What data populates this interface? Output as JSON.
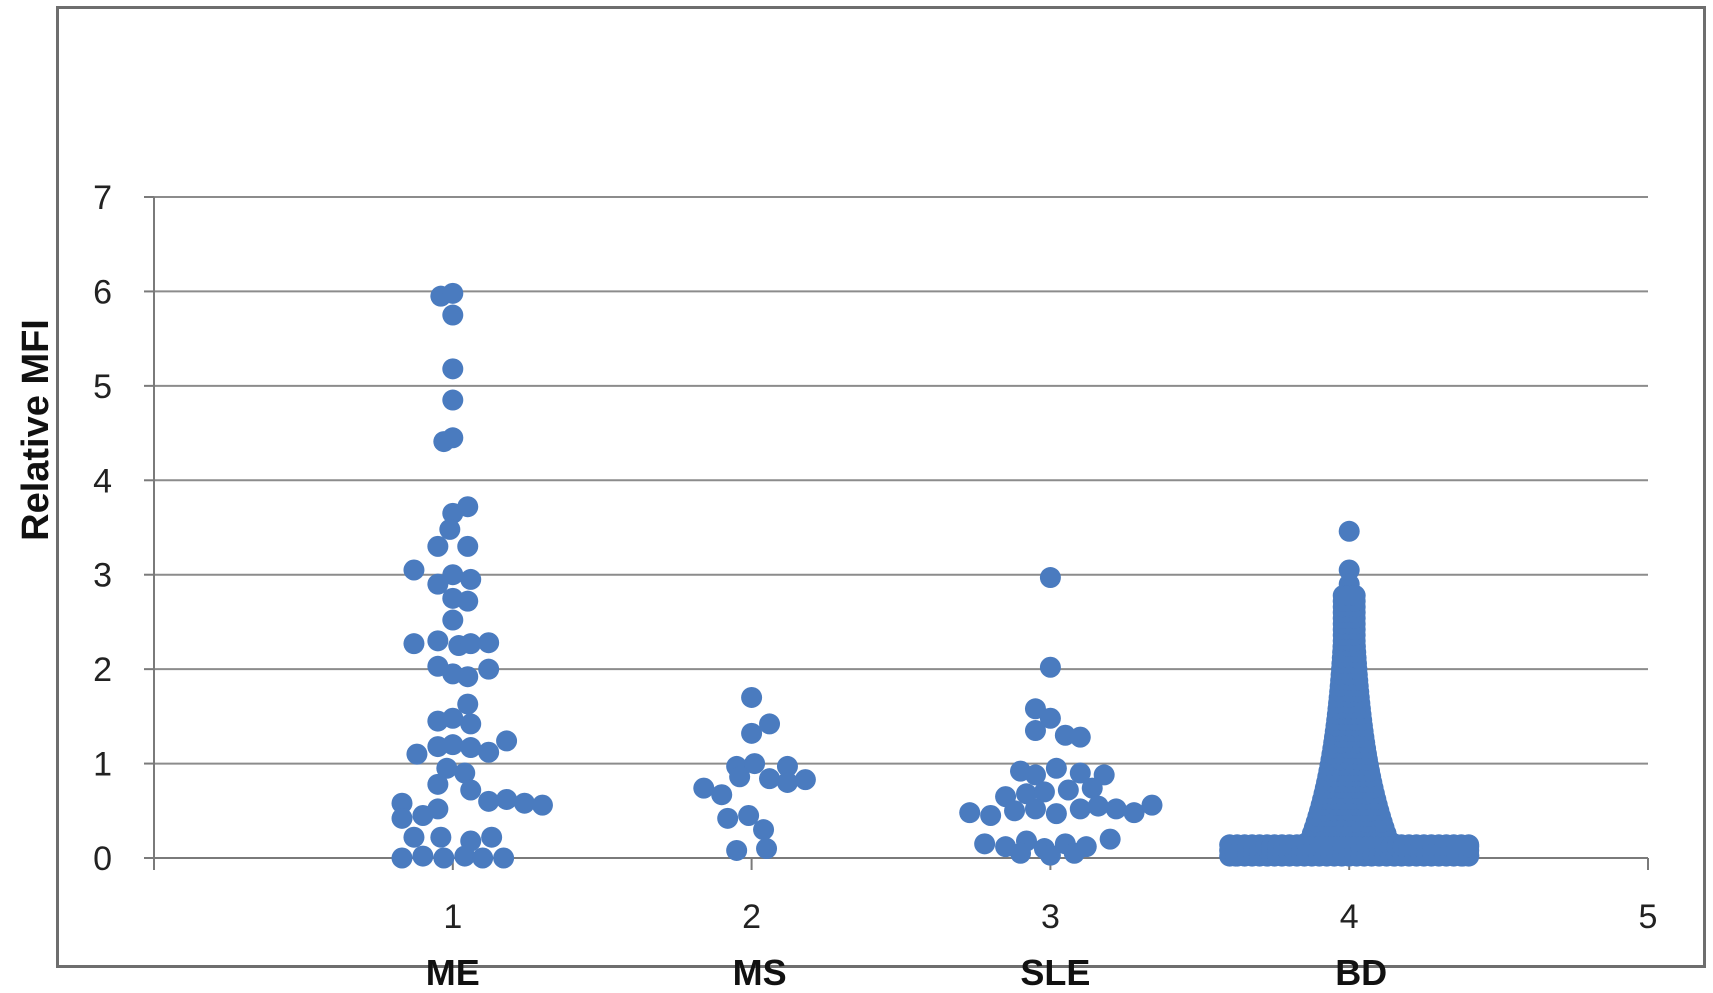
{
  "colors": {
    "point": "#4a7bbf",
    "grid": "#8c8c8c",
    "axis": "#7a7a7a"
  },
  "chart_data": {
    "type": "scatter",
    "title": "",
    "xlabel": "",
    "ylabel": "Relative MFI",
    "xlim": [
      0,
      5
    ],
    "ylim": [
      0,
      7
    ],
    "x_ticks": [
      "1",
      "2",
      "3",
      "4",
      "5"
    ],
    "y_ticks": [
      "0",
      "1",
      "2",
      "3",
      "4",
      "5",
      "6",
      "7"
    ],
    "categories": [
      "ME",
      "MS",
      "SLE",
      "BD"
    ],
    "grid": true,
    "legend": "none",
    "series": [
      {
        "x": 1,
        "points": [
          [
            0.96,
            5.95
          ],
          [
            1.0,
            5.98
          ],
          [
            1.0,
            5.75
          ],
          [
            1.0,
            5.18
          ],
          [
            1.0,
            4.85
          ],
          [
            0.97,
            4.41
          ],
          [
            1.0,
            4.45
          ],
          [
            1.05,
            3.72
          ],
          [
            1.0,
            3.65
          ],
          [
            0.99,
            3.48
          ],
          [
            0.95,
            3.3
          ],
          [
            1.05,
            3.3
          ],
          [
            0.87,
            3.05
          ],
          [
            1.0,
            3.0
          ],
          [
            1.06,
            2.95
          ],
          [
            0.95,
            2.9
          ],
          [
            1.0,
            2.75
          ],
          [
            1.05,
            2.72
          ],
          [
            1.0,
            2.52
          ],
          [
            0.87,
            2.27
          ],
          [
            0.95,
            2.3
          ],
          [
            1.02,
            2.25
          ],
          [
            1.12,
            2.28
          ],
          [
            1.06,
            2.27
          ],
          [
            0.95,
            2.03
          ],
          [
            1.0,
            1.95
          ],
          [
            1.05,
            1.92
          ],
          [
            1.12,
            2.0
          ],
          [
            1.05,
            1.63
          ],
          [
            0.95,
            1.45
          ],
          [
            1.0,
            1.48
          ],
          [
            1.06,
            1.42
          ],
          [
            0.88,
            1.1
          ],
          [
            0.95,
            1.18
          ],
          [
            1.0,
            1.2
          ],
          [
            1.06,
            1.17
          ],
          [
            1.12,
            1.12
          ],
          [
            1.18,
            1.24
          ],
          [
            0.98,
            0.95
          ],
          [
            1.04,
            0.9
          ],
          [
            0.95,
            0.78
          ],
          [
            1.06,
            0.72
          ],
          [
            1.12,
            0.6
          ],
          [
            1.18,
            0.62
          ],
          [
            1.24,
            0.58
          ],
          [
            1.3,
            0.56
          ],
          [
            0.83,
            0.58
          ],
          [
            0.83,
            0.42
          ],
          [
            0.9,
            0.45
          ],
          [
            0.95,
            0.52
          ],
          [
            0.87,
            0.22
          ],
          [
            0.96,
            0.22
          ],
          [
            1.06,
            0.18
          ],
          [
            1.13,
            0.22
          ],
          [
            0.83,
            0.0
          ],
          [
            0.9,
            0.02
          ],
          [
            0.97,
            0.0
          ],
          [
            1.04,
            0.02
          ],
          [
            1.1,
            0.0
          ],
          [
            1.17,
            0.0
          ]
        ]
      },
      {
        "x": 2,
        "points": [
          [
            2.0,
            1.7
          ],
          [
            2.06,
            1.42
          ],
          [
            2.0,
            1.32
          ],
          [
            1.95,
            0.97
          ],
          [
            2.01,
            1.0
          ],
          [
            2.12,
            0.97
          ],
          [
            1.84,
            0.74
          ],
          [
            1.9,
            0.67
          ],
          [
            1.96,
            0.86
          ],
          [
            2.06,
            0.84
          ],
          [
            2.12,
            0.8
          ],
          [
            2.18,
            0.83
          ],
          [
            1.92,
            0.42
          ],
          [
            1.99,
            0.45
          ],
          [
            2.04,
            0.3
          ],
          [
            1.95,
            0.08
          ],
          [
            2.05,
            0.1
          ]
        ]
      },
      {
        "x": 3,
        "points": [
          [
            3.0,
            2.97
          ],
          [
            3.0,
            2.02
          ],
          [
            2.95,
            1.58
          ],
          [
            3.0,
            1.48
          ],
          [
            2.95,
            1.35
          ],
          [
            3.05,
            1.3
          ],
          [
            3.1,
            1.28
          ],
          [
            2.9,
            0.92
          ],
          [
            2.95,
            0.88
          ],
          [
            3.02,
            0.95
          ],
          [
            3.1,
            0.9
          ],
          [
            3.18,
            0.88
          ],
          [
            2.85,
            0.65
          ],
          [
            2.92,
            0.68
          ],
          [
            2.98,
            0.7
          ],
          [
            3.06,
            0.72
          ],
          [
            3.14,
            0.74
          ],
          [
            2.73,
            0.48
          ],
          [
            2.8,
            0.45
          ],
          [
            2.88,
            0.5
          ],
          [
            2.95,
            0.52
          ],
          [
            3.02,
            0.47
          ],
          [
            3.1,
            0.52
          ],
          [
            3.16,
            0.55
          ],
          [
            3.22,
            0.52
          ],
          [
            3.28,
            0.48
          ],
          [
            3.34,
            0.56
          ],
          [
            2.78,
            0.15
          ],
          [
            2.85,
            0.12
          ],
          [
            2.92,
            0.18
          ],
          [
            2.98,
            0.1
          ],
          [
            3.05,
            0.15
          ],
          [
            3.12,
            0.12
          ],
          [
            3.2,
            0.2
          ],
          [
            2.9,
            0.05
          ],
          [
            3.0,
            0.03
          ],
          [
            3.08,
            0.05
          ]
        ]
      },
      {
        "x": 4,
        "points": [
          [
            4.0,
            3.46
          ],
          [
            4.0,
            3.05
          ],
          [
            4.0,
            2.9
          ],
          [
            4.0,
            2.75
          ],
          [
            4.0,
            2.6
          ],
          [
            4.0,
            2.45
          ],
          [
            4.0,
            2.3
          ],
          [
            4.0,
            2.15
          ],
          [
            4.0,
            2.0
          ],
          [
            3.99,
            1.85
          ],
          [
            4.01,
            1.75
          ],
          [
            3.98,
            1.6
          ],
          [
            4.02,
            1.5
          ],
          [
            3.97,
            1.35
          ],
          [
            4.03,
            1.25
          ],
          [
            3.96,
            1.1
          ],
          [
            4.04,
            1.0
          ],
          [
            3.95,
            0.9
          ],
          [
            4.05,
            0.85
          ],
          [
            3.93,
            0.75
          ],
          [
            4.07,
            0.7
          ],
          [
            3.92,
            0.6
          ],
          [
            4.08,
            0.55
          ],
          [
            3.9,
            0.48
          ],
          [
            4.1,
            0.45
          ],
          [
            3.89,
            0.35
          ],
          [
            4.11,
            0.32
          ],
          [
            3.88,
            0.25
          ],
          [
            4.12,
            0.22
          ],
          [
            3.85,
            0.15
          ],
          [
            4.15,
            0.15
          ],
          [
            3.8,
            0.1
          ],
          [
            4.2,
            0.1
          ],
          [
            3.75,
            0.08
          ],
          [
            4.25,
            0.08
          ],
          [
            3.7,
            0.05
          ],
          [
            4.3,
            0.05
          ],
          [
            3.65,
            0.04
          ],
          [
            4.35,
            0.04
          ],
          [
            3.62,
            0.02
          ],
          [
            4.38,
            0.02
          ]
        ]
      }
    ]
  }
}
